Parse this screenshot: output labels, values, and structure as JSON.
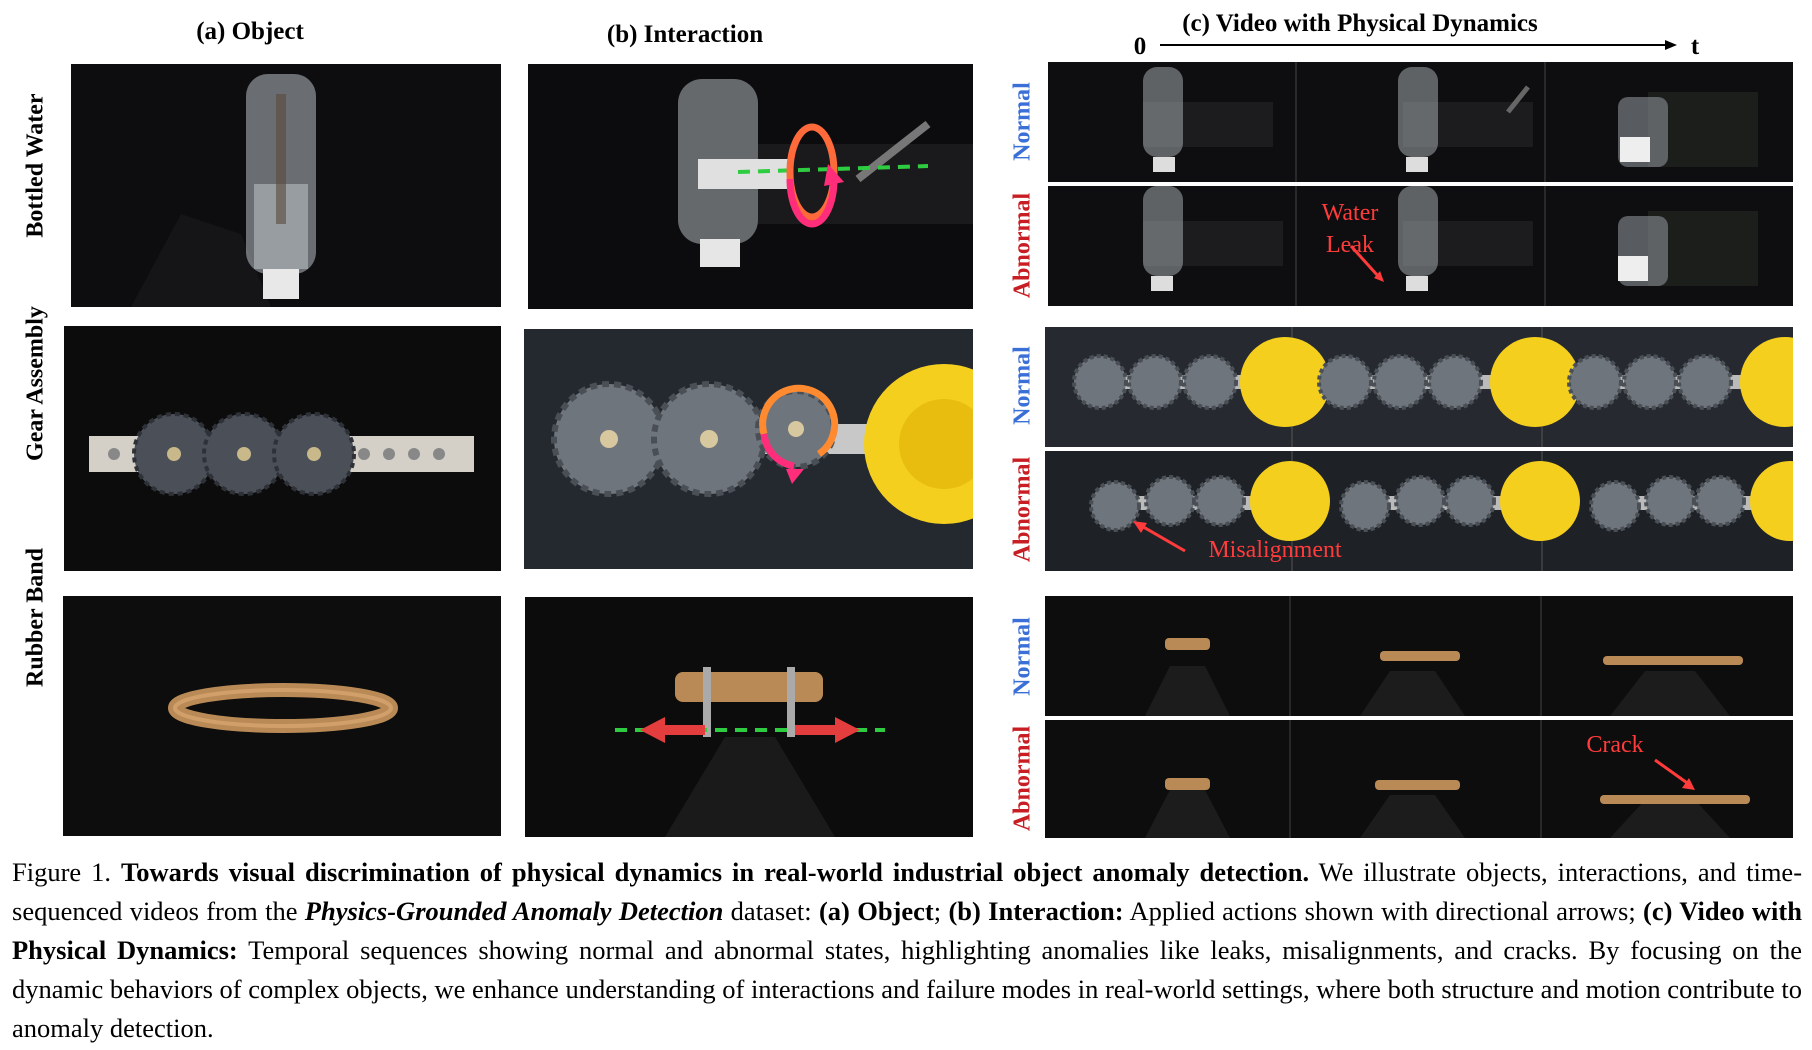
{
  "headers": {
    "object": "(a) Object",
    "interaction": "(b) Interaction",
    "video": "(c) Video with Physical Dynamics",
    "time_start": "0",
    "time_end": "t"
  },
  "rows": [
    {
      "label": "Bottled Water"
    },
    {
      "label": "Gear Assembly"
    },
    {
      "label": "Rubber Band"
    }
  ],
  "states": {
    "normal": "Normal",
    "abnormal": "Abnormal"
  },
  "annotations": {
    "water_leak_1": "Water",
    "water_leak_2": "Leak",
    "misalignment": "Misalignment",
    "crack": "Crack"
  },
  "colors": {
    "normal": "#3a6fd8",
    "abnormal": "#c81e23",
    "annotation": "#ff3b3b",
    "green_axis": "#2ecc40"
  },
  "caption": {
    "fig": "Figure 1.",
    "title": "Towards visual discrimination of physical dynamics in real-world industrial object anomaly detection.",
    "t1": " We illustrate objects, interactions, and time-sequenced videos from the ",
    "dataset": "Physics-Grounded Anomaly Detection",
    "t2": " dataset: ",
    "a": "(a) Object",
    "t3": "; ",
    "b": "(b) Interaction:",
    "t4": " Applied actions shown with directional arrows; ",
    "c": "(c) Video with Physical Dynamics:",
    "t5": " Temporal sequences showing normal and abnormal states, highlighting anomalies like leaks, misalignments, and cracks.  By focusing on the dynamic behaviors of complex objects, we enhance understanding of interactions and failure modes in real-world settings, where both structure and motion contribute to anomaly detection."
  }
}
